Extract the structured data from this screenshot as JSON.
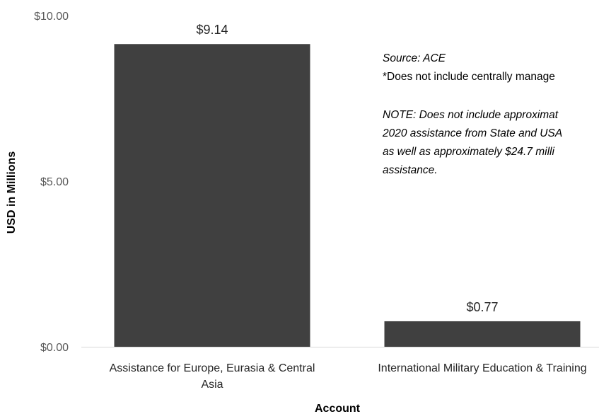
{
  "chart_data": {
    "type": "bar",
    "categories": [
      "Assistance for Europe, Eurasia & Central Asia",
      "International Military Education & Training"
    ],
    "category_label_lines": [
      [
        "Assistance for Europe, Eurasia & Central",
        "Asia"
      ],
      [
        "International Military Education & Training"
      ]
    ],
    "values": [
      9.14,
      0.77
    ],
    "data_labels": [
      "$9.14",
      "$0.77"
    ],
    "title": "",
    "xlabel": "Account",
    "ylabel": "USD in Millions",
    "ylim": [
      0,
      10
    ],
    "yticks": [
      0,
      5,
      10
    ],
    "ytick_labels": [
      "$0.00",
      "$5.00",
      "$10.00"
    ],
    "grid": false,
    "legend": "none",
    "colors": {
      "bar": "#404040",
      "axis": "#d9d9d9",
      "text": "#262626",
      "tick_text": "#595959"
    }
  },
  "annotations": {
    "source": "Source: ACE",
    "footnote": "*Does not include centrally manage",
    "note_lines": [
      "NOTE: Does not include approximat",
      "2020 assistance from State and USA",
      "as well as approximately $24.7 milli",
      "assistance."
    ]
  }
}
